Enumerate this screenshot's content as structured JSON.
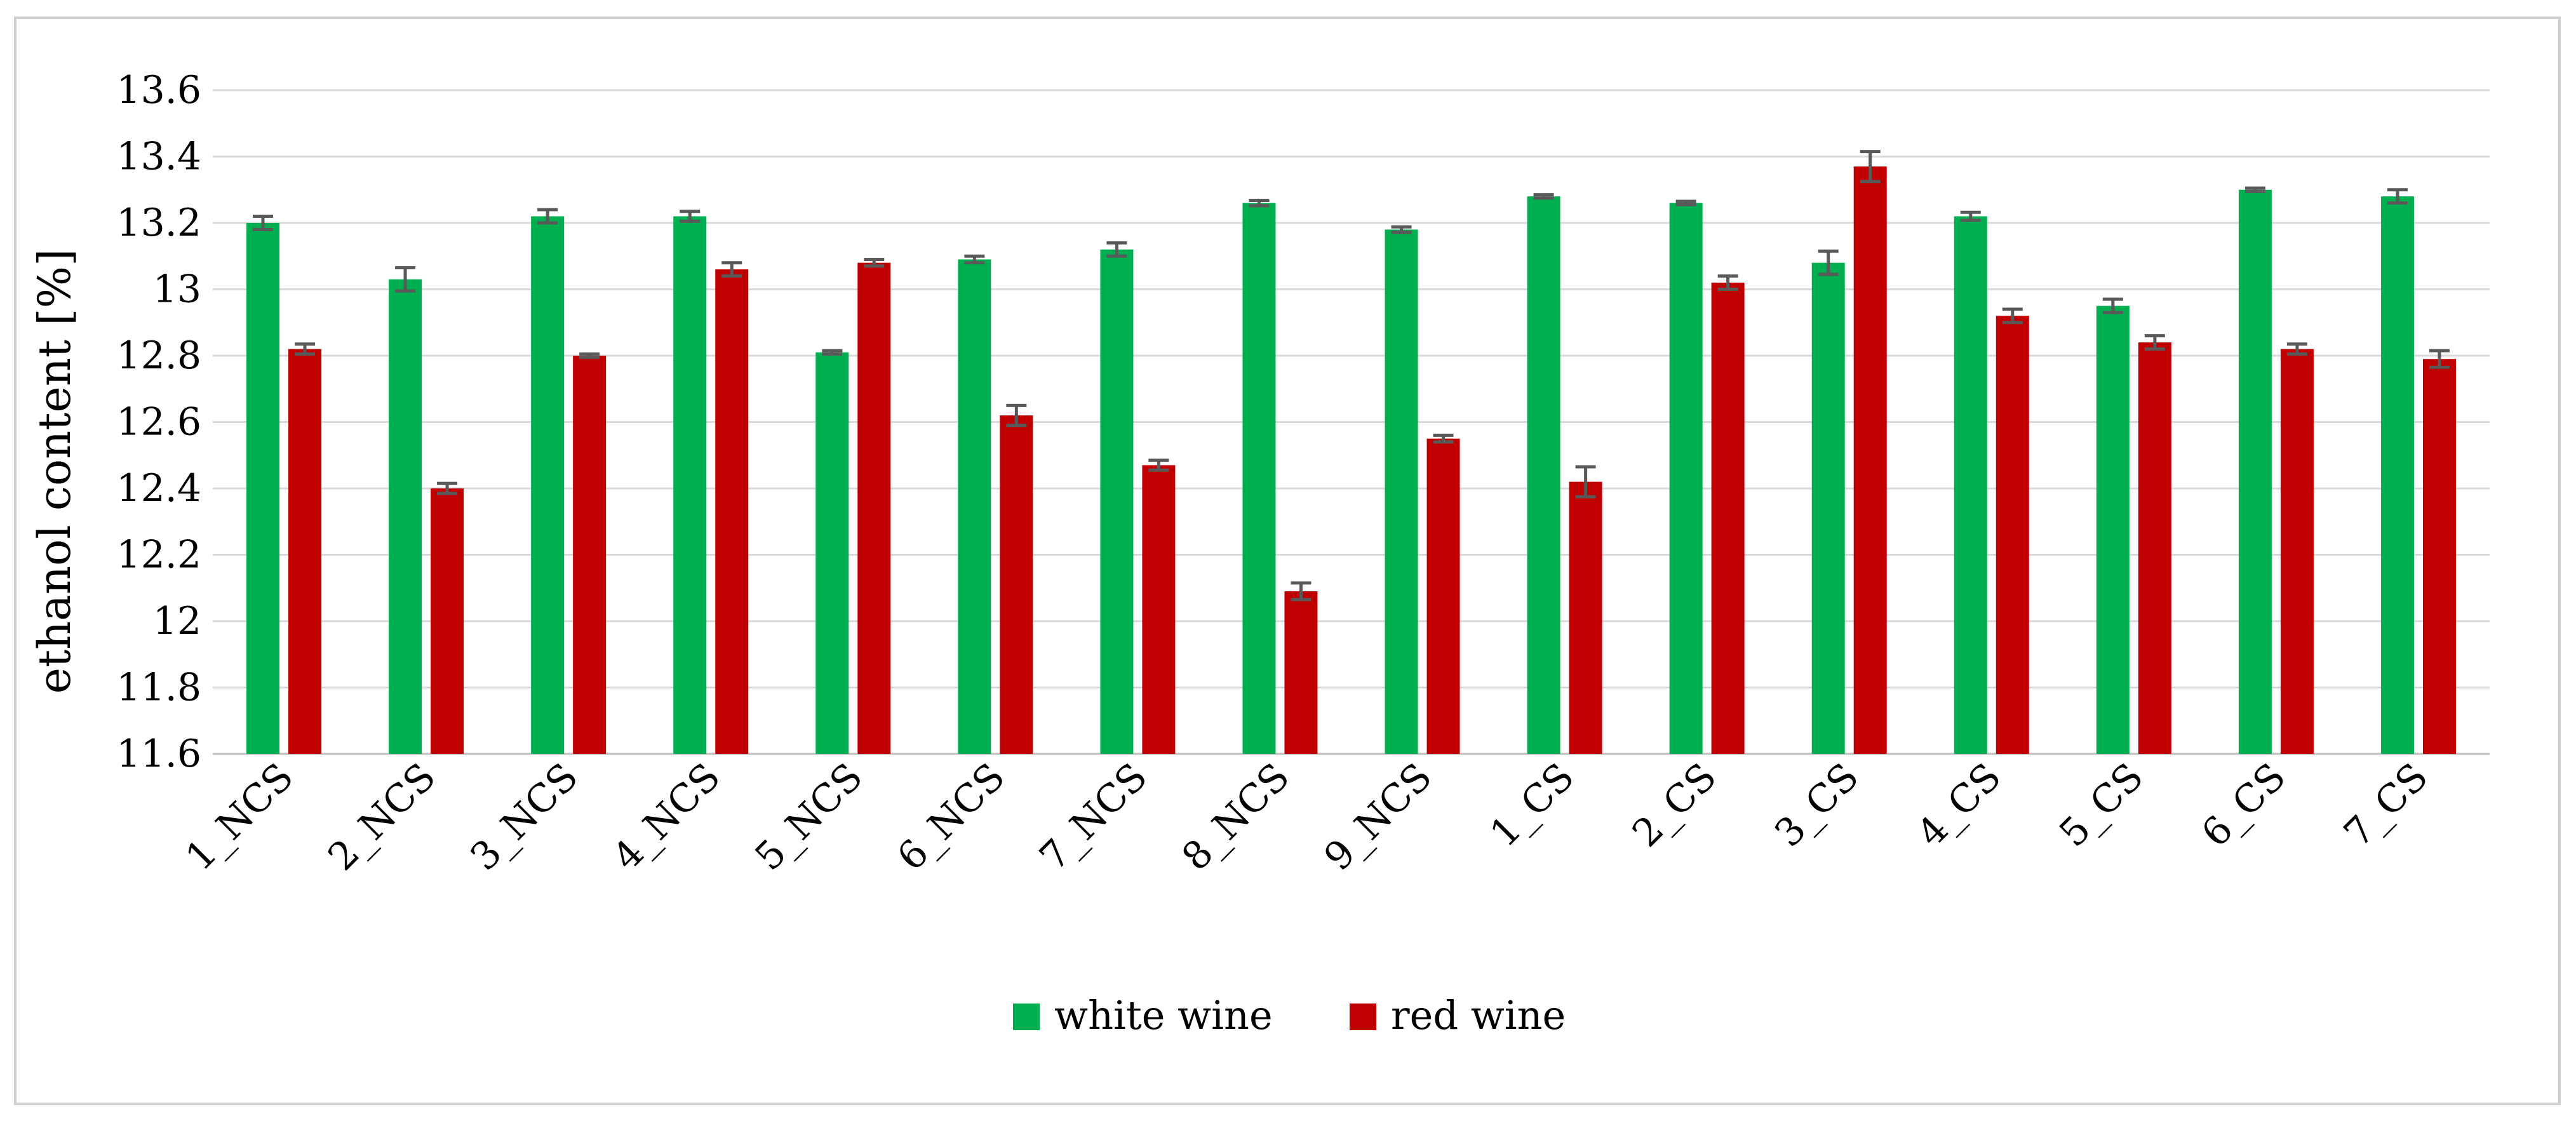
{
  "chart_data": {
    "type": "bar",
    "title": "",
    "xlabel": "",
    "ylabel": "ethanol content [%]",
    "ylim": [
      11.6,
      13.6
    ],
    "y_ticks": [
      "11.6",
      "11.8",
      "12",
      "12.2",
      "12.4",
      "12.6",
      "12.8",
      "13",
      "13.2",
      "13.4",
      "13.6"
    ],
    "grid": true,
    "legend_position": "bottom",
    "categories": [
      "1_NCS",
      "2_NCS",
      "3_NCS",
      "4_NCS",
      "5_NCS",
      "6_NCS",
      "7_NCS",
      "8_NCS",
      "9_NCS",
      "1_CS",
      "2_CS",
      "3_CS",
      "4_CS",
      "5_CS",
      "6_CS",
      "7_CS"
    ],
    "series": [
      {
        "name": "white wine",
        "color": "#00b050",
        "values": [
          13.2,
          13.03,
          13.22,
          13.22,
          12.81,
          13.09,
          13.12,
          13.26,
          13.18,
          13.28,
          13.26,
          13.08,
          13.22,
          12.95,
          13.3,
          13.28
        ],
        "errors": [
          0.02,
          0.035,
          0.02,
          0.015,
          0.005,
          0.01,
          0.02,
          0.008,
          0.008,
          0.005,
          0.005,
          0.035,
          0.012,
          0.02,
          0.005,
          0.02
        ]
      },
      {
        "name": "red wine",
        "color": "#c00000",
        "values": [
          12.82,
          12.4,
          12.8,
          13.06,
          13.08,
          12.62,
          12.47,
          12.09,
          12.55,
          12.42,
          13.02,
          13.37,
          12.92,
          12.84,
          12.82,
          12.79
        ],
        "errors": [
          0.015,
          0.015,
          0.005,
          0.02,
          0.01,
          0.03,
          0.015,
          0.025,
          0.01,
          0.045,
          0.02,
          0.045,
          0.02,
          0.02,
          0.015,
          0.025
        ]
      }
    ]
  }
}
